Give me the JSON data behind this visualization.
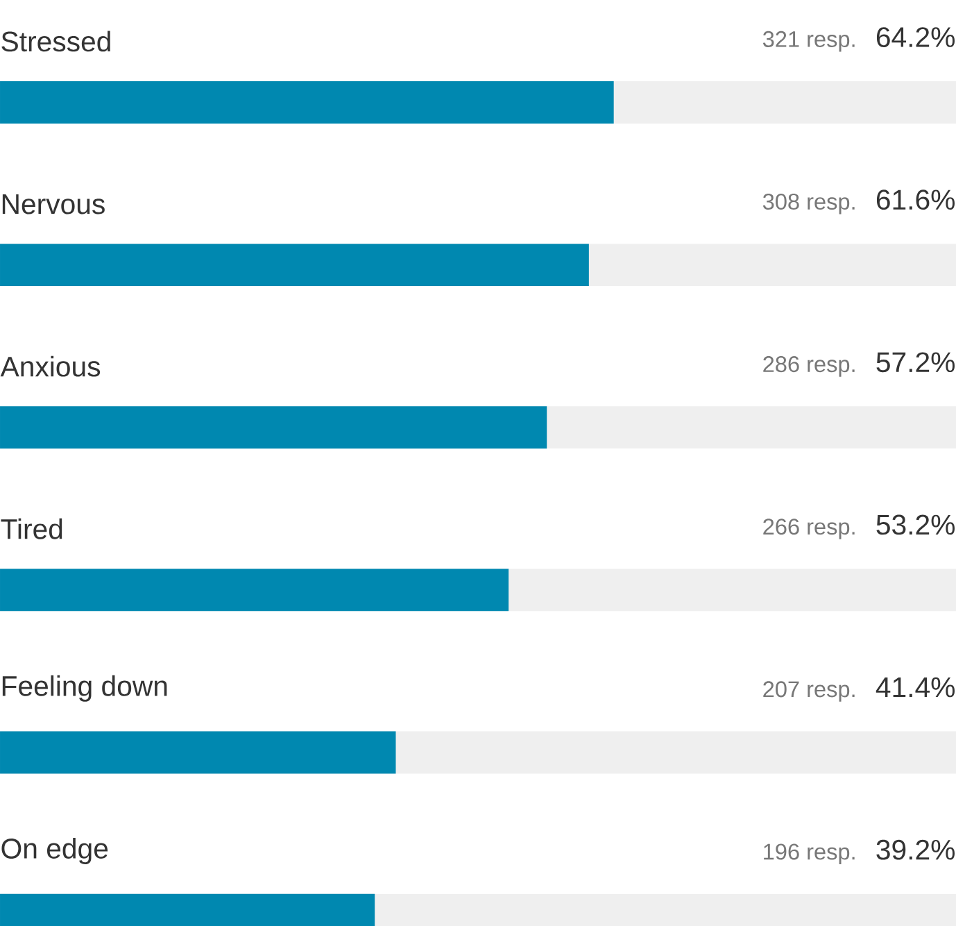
{
  "chart_data": {
    "type": "bar",
    "orientation": "horizontal",
    "tick_labels": false,
    "categories": [
      "Stressed",
      "Nervous",
      "Anxious",
      "Tired",
      "Feeling down",
      "On edge"
    ],
    "xlim": [
      0,
      100
    ],
    "series": [
      {
        "color": "#0088b0",
        "values": [
          64.2,
          61.6,
          57.2,
          53.2,
          41.4,
          39.2
        ],
        "value_labels": [
          "64.2%",
          "61.6%",
          "57.2%",
          "53.2%",
          "41.4%",
          "39.2%"
        ]
      }
    ],
    "annotations": [
      "321 resp.",
      "308 resp.",
      "286 resp.",
      "266 resp.",
      "207 resp.",
      "196 resp."
    ]
  }
}
